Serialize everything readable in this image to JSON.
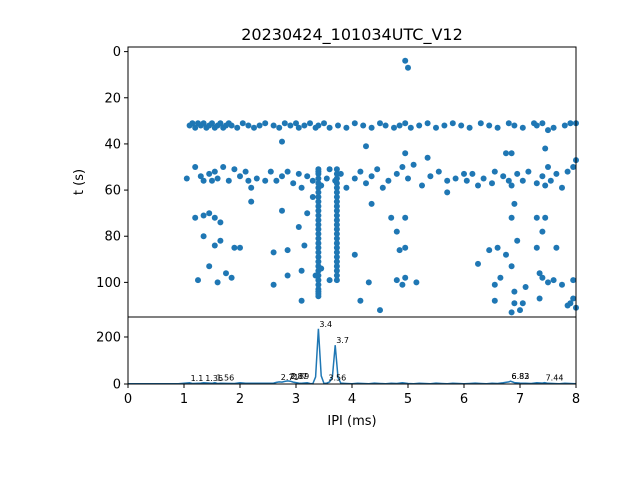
{
  "chart_data": [
    {
      "type": "scatter",
      "title": "20230424_101034UTC_V12",
      "xlabel": "",
      "ylabel": "t (s)",
      "xlim": [
        0,
        8
      ],
      "ylim": [
        115,
        -2
      ],
      "yinverted": true,
      "yticks": [
        "0",
        "20",
        "40",
        "60",
        "80",
        "100"
      ],
      "grid": false,
      "color": "#1f77b4",
      "points": [
        [
          4.95,
          4
        ],
        [
          5.0,
          7
        ],
        [
          1.1,
          32
        ],
        [
          1.15,
          31
        ],
        [
          1.2,
          33
        ],
        [
          1.25,
          31
        ],
        [
          1.3,
          32
        ],
        [
          1.35,
          31
        ],
        [
          1.4,
          33
        ],
        [
          1.45,
          32
        ],
        [
          1.5,
          31
        ],
        [
          1.55,
          33
        ],
        [
          1.6,
          32
        ],
        [
          1.65,
          31
        ],
        [
          1.7,
          33
        ],
        [
          1.75,
          32
        ],
        [
          1.8,
          31
        ],
        [
          1.85,
          32
        ],
        [
          1.95,
          33
        ],
        [
          2.05,
          31
        ],
        [
          2.15,
          32
        ],
        [
          2.25,
          33
        ],
        [
          2.35,
          32
        ],
        [
          2.45,
          31
        ],
        [
          2.6,
          32
        ],
        [
          2.7,
          33
        ],
        [
          2.8,
          31
        ],
        [
          2.9,
          32
        ],
        [
          3.0,
          31
        ],
        [
          3.05,
          33
        ],
        [
          3.15,
          32
        ],
        [
          3.25,
          31
        ],
        [
          3.35,
          33
        ],
        [
          3.4,
          32
        ],
        [
          3.5,
          31
        ],
        [
          3.6,
          33
        ],
        [
          3.75,
          32
        ],
        [
          3.9,
          33
        ],
        [
          4.05,
          31
        ],
        [
          4.2,
          32
        ],
        [
          4.35,
          33
        ],
        [
          4.5,
          31
        ],
        [
          4.6,
          32
        ],
        [
          4.75,
          33
        ],
        [
          4.85,
          32
        ],
        [
          4.95,
          31
        ],
        [
          5.05,
          33
        ],
        [
          5.2,
          32
        ],
        [
          5.35,
          31
        ],
        [
          5.5,
          33
        ],
        [
          5.65,
          32
        ],
        [
          5.8,
          31
        ],
        [
          5.95,
          32
        ],
        [
          6.1,
          33
        ],
        [
          6.3,
          31
        ],
        [
          6.45,
          32
        ],
        [
          6.6,
          33
        ],
        [
          6.8,
          31
        ],
        [
          6.9,
          32
        ],
        [
          7.05,
          33
        ],
        [
          7.25,
          31
        ],
        [
          7.3,
          32
        ],
        [
          7.4,
          31
        ],
        [
          7.5,
          34
        ],
        [
          7.6,
          33
        ],
        [
          7.8,
          32
        ],
        [
          7.9,
          31
        ],
        [
          8.0,
          31
        ],
        [
          2.75,
          39
        ],
        [
          4.25,
          41
        ],
        [
          4.95,
          44
        ],
        [
          5.35,
          46
        ],
        [
          6.75,
          44
        ],
        [
          6.85,
          44
        ],
        [
          7.45,
          42
        ],
        [
          8.0,
          47
        ],
        [
          1.05,
          55
        ],
        [
          1.2,
          50
        ],
        [
          1.3,
          54
        ],
        [
          1.35,
          56
        ],
        [
          1.45,
          53
        ],
        [
          1.5,
          56
        ],
        [
          1.55,
          52
        ],
        [
          1.6,
          55
        ],
        [
          1.7,
          50
        ],
        [
          1.8,
          56
        ],
        [
          1.9,
          51
        ],
        [
          2.0,
          54
        ],
        [
          2.1,
          52
        ],
        [
          2.15,
          56
        ],
        [
          2.2,
          59
        ],
        [
          2.3,
          55
        ],
        [
          2.45,
          56
        ],
        [
          2.55,
          52
        ],
        [
          2.65,
          56
        ],
        [
          2.75,
          54
        ],
        [
          2.85,
          52
        ],
        [
          2.95,
          57
        ],
        [
          3.05,
          53
        ],
        [
          3.1,
          59
        ],
        [
          3.2,
          54
        ],
        [
          3.3,
          56
        ],
        [
          3.4,
          52
        ],
        [
          3.45,
          58
        ],
        [
          3.55,
          55
        ],
        [
          3.6,
          51
        ],
        [
          3.7,
          56
        ],
        [
          3.8,
          53
        ],
        [
          3.9,
          59
        ],
        [
          4.05,
          55
        ],
        [
          4.15,
          52
        ],
        [
          4.25,
          57
        ],
        [
          4.35,
          54
        ],
        [
          4.45,
          51
        ],
        [
          4.55,
          59
        ],
        [
          4.65,
          56
        ],
        [
          4.8,
          53
        ],
        [
          4.9,
          50
        ],
        [
          5.0,
          55
        ],
        [
          5.1,
          49
        ],
        [
          5.25,
          58
        ],
        [
          5.4,
          54
        ],
        [
          5.55,
          52
        ],
        [
          5.7,
          56
        ],
        [
          5.85,
          55
        ],
        [
          6.0,
          53
        ],
        [
          6.05,
          56
        ],
        [
          6.15,
          53
        ],
        [
          6.25,
          58
        ],
        [
          6.35,
          55
        ],
        [
          6.5,
          57
        ],
        [
          6.55,
          52
        ],
        [
          6.7,
          54
        ],
        [
          6.8,
          56
        ],
        [
          6.85,
          58
        ],
        [
          6.95,
          53
        ],
        [
          7.05,
          56
        ],
        [
          7.15,
          52
        ],
        [
          7.3,
          57
        ],
        [
          7.4,
          54
        ],
        [
          7.45,
          58
        ],
        [
          7.5,
          50
        ],
        [
          7.55,
          56
        ],
        [
          7.65,
          53
        ],
        [
          7.75,
          59
        ],
        [
          7.85,
          52
        ],
        [
          7.95,
          50
        ],
        [
          2.2,
          65
        ],
        [
          3.3,
          63
        ],
        [
          4.35,
          66
        ],
        [
          5.7,
          61
        ],
        [
          6.9,
          66
        ],
        [
          1.2,
          72
        ],
        [
          1.35,
          71
        ],
        [
          1.45,
          70
        ],
        [
          1.55,
          72
        ],
        [
          1.65,
          74
        ],
        [
          2.75,
          69
        ],
        [
          3.2,
          70
        ],
        [
          4.7,
          72
        ],
        [
          4.95,
          72
        ],
        [
          6.85,
          72
        ],
        [
          7.3,
          72
        ],
        [
          7.45,
          72
        ],
        [
          1.35,
          80
        ],
        [
          1.55,
          84
        ],
        [
          1.65,
          82
        ],
        [
          1.9,
          85
        ],
        [
          2.0,
          85
        ],
        [
          2.6,
          87
        ],
        [
          2.85,
          86
        ],
        [
          3.05,
          76
        ],
        [
          3.15,
          84
        ],
        [
          4.05,
          88
        ],
        [
          4.8,
          78
        ],
        [
          4.85,
          86
        ],
        [
          4.95,
          85
        ],
        [
          6.45,
          86
        ],
        [
          6.6,
          85
        ],
        [
          6.75,
          88
        ],
        [
          6.95,
          82
        ],
        [
          7.3,
          85
        ],
        [
          7.4,
          78
        ],
        [
          7.65,
          85
        ],
        [
          1.25,
          99
        ],
        [
          1.45,
          93
        ],
        [
          1.6,
          100
        ],
        [
          1.75,
          96
        ],
        [
          1.85,
          98
        ],
        [
          2.6,
          101
        ],
        [
          2.85,
          97
        ],
        [
          3.1,
          95
        ],
        [
          3.35,
          97
        ],
        [
          3.45,
          94
        ],
        [
          3.6,
          99
        ],
        [
          4.3,
          100
        ],
        [
          4.5,
          112
        ],
        [
          4.8,
          99
        ],
        [
          4.9,
          101
        ],
        [
          4.95,
          98
        ],
        [
          5.15,
          100
        ],
        [
          6.25,
          92
        ],
        [
          6.55,
          101
        ],
        [
          6.65,
          98
        ],
        [
          6.85,
          93
        ],
        [
          6.9,
          104
        ],
        [
          7.1,
          102
        ],
        [
          7.35,
          96
        ],
        [
          7.4,
          98
        ],
        [
          7.5,
          100
        ],
        [
          7.6,
          99
        ],
        [
          7.75,
          101
        ],
        [
          7.95,
          99
        ],
        [
          3.1,
          108
        ],
        [
          4.15,
          108
        ],
        [
          6.55,
          108
        ],
        [
          6.9,
          109
        ],
        [
          7.05,
          109
        ],
        [
          7.35,
          107
        ],
        [
          7.85,
          110
        ],
        [
          7.95,
          107
        ],
        [
          8.0,
          111
        ],
        [
          6.85,
          113
        ],
        [
          7.0,
          112
        ],
        [
          7.9,
          109
        ]
      ],
      "dense_columns": [
        {
          "x": 3.4,
          "t": [
            51,
            53,
            55,
            57,
            59,
            61,
            63,
            65,
            67,
            69,
            71,
            73,
            75,
            77,
            79,
            81,
            83,
            85,
            87,
            89,
            91,
            93,
            95,
            97,
            99,
            101,
            103,
            104,
            105,
            106
          ]
        },
        {
          "x": 3.73,
          "t": [
            51,
            53,
            55,
            57,
            59,
            61,
            63,
            65,
            67,
            69,
            71,
            73,
            75,
            77,
            79,
            81,
            83,
            85,
            87,
            89,
            91,
            93,
            95,
            97,
            99
          ]
        }
      ]
    },
    {
      "type": "line",
      "title": "",
      "xlabel": "IPI (ms)",
      "ylabel": "",
      "xlim": [
        0,
        8
      ],
      "ylim": [
        0,
        285
      ],
      "xticks": [
        "0",
        "1",
        "2",
        "3",
        "4",
        "5",
        "6",
        "7",
        "8"
      ],
      "yticks": [
        "0",
        "200"
      ],
      "grid": false,
      "color": "#1f77b4",
      "series": [
        {
          "x": [
            0,
            0.9,
            1.0,
            1.1,
            1.15,
            1.3,
            1.35,
            1.5,
            1.55,
            1.6,
            1.65,
            1.9,
            2.0,
            2.1,
            2.5,
            2.6,
            2.65,
            2.7,
            2.75,
            2.8,
            2.85,
            2.9,
            2.95,
            3.0,
            3.05,
            3.1,
            3.2,
            3.25,
            3.3,
            3.35,
            3.4,
            3.45,
            3.5,
            3.55,
            3.6,
            3.65,
            3.7,
            3.75,
            3.8,
            3.9,
            4.0,
            4.1,
            4.2,
            4.3,
            4.4,
            4.5,
            4.6,
            4.7,
            4.8,
            4.9,
            5.0,
            5.1,
            5.2,
            5.3,
            5.4,
            5.5,
            5.6,
            5.7,
            5.8,
            5.9,
            6.0,
            6.1,
            6.2,
            6.3,
            6.4,
            6.5,
            6.6,
            6.7,
            6.8,
            6.83,
            6.9,
            7.0,
            7.1,
            7.2,
            7.3,
            7.4,
            7.44,
            7.5,
            7.6,
            7.7,
            7.8,
            7.9,
            8.0
          ],
          "y": [
            1,
            1,
            3,
            5,
            2,
            4,
            5,
            3,
            6,
            2,
            3,
            2,
            5,
            3,
            3,
            4,
            7,
            9,
            8,
            11,
            13,
            12,
            8,
            6,
            4,
            3,
            5,
            2,
            1,
            30,
            235,
            35,
            2,
            4,
            9,
            30,
            165,
            28,
            4,
            2,
            1,
            3,
            2,
            1,
            4,
            2,
            1,
            3,
            2,
            5,
            2,
            1,
            3,
            2,
            1,
            4,
            2,
            1,
            3,
            2,
            1,
            2,
            4,
            2,
            1,
            3,
            2,
            5,
            9,
            12,
            6,
            4,
            3,
            2,
            5,
            4,
            6,
            3,
            2,
            1,
            3,
            2,
            1
          ]
        }
      ],
      "annotations": [
        {
          "x": 1.1,
          "y": 5,
          "text": "1.1"
        },
        {
          "x": 1.36,
          "y": 5,
          "text": "1.36"
        },
        {
          "x": 1.56,
          "y": 6,
          "text": "1.56"
        },
        {
          "x": 2.71,
          "y": 9,
          "text": "2.71"
        },
        {
          "x": 2.87,
          "y": 13,
          "text": "2.87"
        },
        {
          "x": 2.9,
          "y": 12,
          "text": "2.89"
        },
        {
          "x": 3.4,
          "y": 235,
          "text": "3.4"
        },
        {
          "x": 3.56,
          "y": 7,
          "text": "3.56"
        },
        {
          "x": 3.7,
          "y": 165,
          "text": "3.7"
        },
        {
          "x": 6.83,
          "y": 12,
          "text": "6.83"
        },
        {
          "x": 6.83,
          "y": 12,
          "text": "6.82"
        },
        {
          "x": 7.44,
          "y": 6,
          "text": "7.44"
        }
      ]
    }
  ]
}
